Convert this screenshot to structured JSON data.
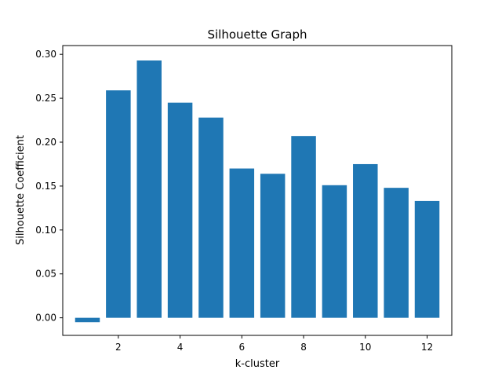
{
  "chart_data": {
    "type": "bar",
    "title": "Silhouette Graph",
    "xlabel": "k-cluster",
    "ylabel": "Silhouette Coefficient",
    "x": [
      1,
      2,
      3,
      4,
      5,
      6,
      7,
      8,
      9,
      10,
      11,
      12
    ],
    "values": [
      -0.005,
      0.259,
      0.293,
      0.245,
      0.228,
      0.17,
      0.164,
      0.207,
      0.151,
      0.175,
      0.148,
      0.133
    ],
    "xlim": [
      0.2,
      12.8
    ],
    "ylim": [
      -0.02,
      0.31
    ],
    "xticks": [
      "2",
      "4",
      "6",
      "8",
      "10",
      "12"
    ],
    "yticks": [
      "0.00",
      "0.05",
      "0.10",
      "0.15",
      "0.20",
      "0.25",
      "0.30"
    ],
    "bar_color": "#1f77b4",
    "grid": false,
    "legend": "none"
  }
}
